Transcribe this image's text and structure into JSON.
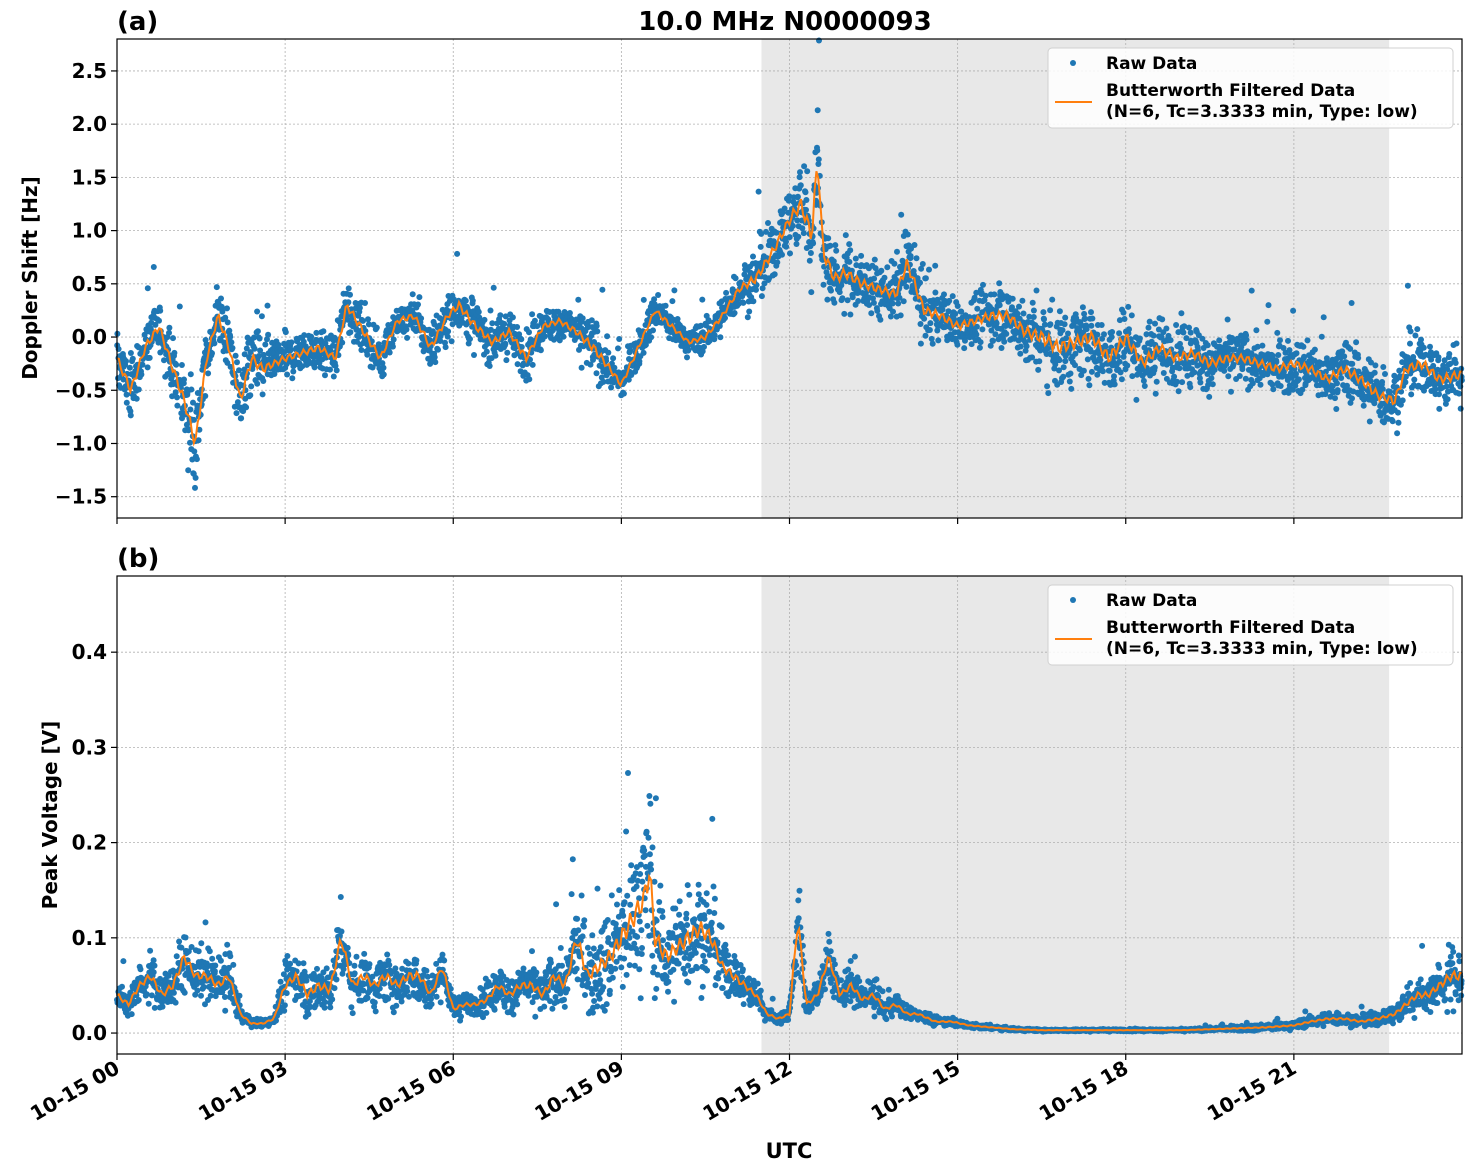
{
  "figure": {
    "title": "10.0 MHz N0000093",
    "xlabel": "UTC",
    "x_range_hours": [
      0,
      24
    ],
    "x_ticks": [
      {
        "h": 0,
        "label": "10-15 00"
      },
      {
        "h": 3,
        "label": "10-15 03"
      },
      {
        "h": 6,
        "label": "10-15 06"
      },
      {
        "h": 9,
        "label": "10-15 09"
      },
      {
        "h": 12,
        "label": "10-15 12"
      },
      {
        "h": 15,
        "label": "10-15 15"
      },
      {
        "h": 18,
        "label": "10-15 18"
      },
      {
        "h": 21,
        "label": "10-15 21"
      }
    ],
    "shaded_interval_hours": [
      11.5,
      22.7
    ],
    "colors": {
      "raw": "#1f77b4",
      "filtered": "#ff7f0e",
      "shade": "#e8e8e8",
      "grid": "#b0b0b0"
    }
  },
  "legend": {
    "raw_label": "Raw Data",
    "filtered_label_line1": "Butterworth Filtered Data",
    "filtered_label_line2": "(N=6, Tc=3.3333 min, Type: low)"
  },
  "chart_data": [
    {
      "panel": "(a)",
      "type": "scatter+line",
      "ylabel": "Doppler Shift [Hz]",
      "ylim": [
        -1.7,
        2.8
      ],
      "yticks": [
        -1.5,
        -1.0,
        -0.5,
        0.0,
        0.5,
        1.0,
        1.5,
        2.0,
        2.5
      ],
      "ytick_labels": [
        "−1.5",
        "−1.0",
        "−0.5",
        "0.0",
        "0.5",
        "1.0",
        "1.5",
        "2.0",
        "2.5"
      ],
      "filtered": {
        "x": [
          0,
          0.25,
          0.5,
          0.75,
          1.0,
          1.2,
          1.4,
          1.6,
          1.8,
          2.0,
          2.2,
          2.4,
          2.6,
          2.8,
          3.0,
          3.3,
          3.6,
          3.9,
          4.1,
          4.4,
          4.7,
          5.0,
          5.3,
          5.6,
          5.9,
          6.1,
          6.4,
          6.7,
          7.0,
          7.3,
          7.6,
          7.9,
          8.2,
          8.5,
          8.8,
          9.0,
          9.3,
          9.6,
          9.9,
          10.2,
          10.5,
          10.8,
          11.1,
          11.4,
          11.7,
          12.0,
          12.2,
          12.4,
          12.5,
          12.6,
          12.8,
          13.0,
          13.3,
          13.6,
          13.9,
          14.1,
          14.4,
          14.7,
          15.0,
          15.3,
          15.6,
          15.9,
          16.2,
          16.5,
          16.8,
          17.1,
          17.4,
          17.7,
          18.0,
          18.3,
          18.6,
          18.9,
          19.2,
          19.5,
          19.8,
          20.1,
          20.4,
          20.7,
          21.0,
          21.3,
          21.6,
          21.9,
          22.2,
          22.5,
          22.8,
          23.0,
          23.3,
          23.6,
          24.0
        ],
        "y": [
          -0.2,
          -0.5,
          -0.1,
          0.1,
          -0.3,
          -0.6,
          -1.0,
          -0.2,
          0.2,
          -0.1,
          -0.6,
          -0.2,
          -0.3,
          -0.25,
          -0.2,
          -0.15,
          -0.1,
          -0.2,
          0.3,
          0.05,
          -0.2,
          0.15,
          0.2,
          -0.1,
          0.2,
          0.3,
          0.1,
          -0.05,
          0.05,
          -0.2,
          0.1,
          0.15,
          0.05,
          -0.1,
          -0.3,
          -0.45,
          -0.1,
          0.25,
          0.1,
          -0.05,
          0.0,
          0.2,
          0.45,
          0.55,
          0.8,
          1.1,
          1.25,
          0.95,
          1.7,
          0.8,
          0.55,
          0.6,
          0.5,
          0.45,
          0.4,
          0.7,
          0.25,
          0.2,
          0.1,
          0.15,
          0.2,
          0.2,
          0.05,
          0.0,
          -0.1,
          -0.05,
          0.0,
          -0.2,
          0.0,
          -0.25,
          -0.1,
          -0.2,
          -0.15,
          -0.25,
          -0.2,
          -0.2,
          -0.25,
          -0.3,
          -0.25,
          -0.3,
          -0.4,
          -0.3,
          -0.4,
          -0.55,
          -0.6,
          -0.3,
          -0.25,
          -0.4,
          -0.35
        ],
        "spread": [
          0.3,
          0.35,
          0.3,
          0.3,
          0.35,
          0.4,
          0.5,
          0.3,
          0.3,
          0.35,
          0.4,
          0.4,
          0.35,
          0.25,
          0.25,
          0.25,
          0.25,
          0.25,
          0.3,
          0.3,
          0.25,
          0.2,
          0.25,
          0.3,
          0.25,
          0.3,
          0.3,
          0.25,
          0.25,
          0.3,
          0.2,
          0.2,
          0.25,
          0.35,
          0.25,
          0.2,
          0.2,
          0.2,
          0.2,
          0.15,
          0.2,
          0.2,
          0.25,
          0.35,
          0.35,
          0.4,
          0.5,
          0.6,
          0.7,
          0.5,
          0.4,
          0.4,
          0.35,
          0.3,
          0.35,
          0.4,
          0.35,
          0.3,
          0.3,
          0.3,
          0.35,
          0.35,
          0.4,
          0.5,
          0.5,
          0.45,
          0.45,
          0.45,
          0.45,
          0.4,
          0.4,
          0.35,
          0.35,
          0.35,
          0.3,
          0.3,
          0.3,
          0.3,
          0.3,
          0.3,
          0.3,
          0.35,
          0.35,
          0.35,
          0.35,
          0.35,
          0.35,
          0.35,
          0.35
        ]
      }
    },
    {
      "panel": "(b)",
      "type": "scatter+line",
      "ylabel": "Peak Voltage [V]",
      "ylim": [
        -0.022,
        0.48
      ],
      "yticks": [
        0.0,
        0.1,
        0.2,
        0.3,
        0.4
      ],
      "ytick_labels": [
        "0.0",
        "0.1",
        "0.2",
        "0.3",
        "0.4"
      ],
      "filtered": {
        "x": [
          0,
          0.2,
          0.4,
          0.6,
          0.8,
          1.0,
          1.2,
          1.4,
          1.6,
          1.8,
          2.0,
          2.2,
          2.4,
          2.6,
          2.8,
          3.0,
          3.2,
          3.4,
          3.6,
          3.8,
          4.0,
          4.2,
          4.4,
          4.6,
          4.8,
          5.0,
          5.2,
          5.4,
          5.6,
          5.8,
          6.0,
          6.2,
          6.4,
          6.6,
          6.8,
          7.0,
          7.2,
          7.4,
          7.6,
          7.8,
          8.0,
          8.2,
          8.4,
          8.6,
          8.8,
          9.0,
          9.2,
          9.4,
          9.5,
          9.6,
          9.8,
          10.0,
          10.2,
          10.4,
          10.6,
          10.8,
          11.0,
          11.2,
          11.4,
          11.6,
          11.8,
          12.0,
          12.15,
          12.3,
          12.5,
          12.7,
          12.9,
          13.1,
          13.3,
          13.5,
          13.7,
          13.9,
          14.1,
          14.3,
          14.6,
          14.9,
          15.2,
          15.6,
          16.0,
          16.5,
          17.0,
          17.5,
          18.0,
          18.5,
          19.0,
          19.5,
          20.0,
          20.5,
          21.0,
          21.3,
          21.6,
          21.9,
          22.2,
          22.5,
          22.8,
          23.0,
          23.2,
          23.4,
          23.6,
          23.8,
          24.0
        ],
        "y": [
          0.04,
          0.03,
          0.05,
          0.06,
          0.04,
          0.05,
          0.08,
          0.06,
          0.06,
          0.05,
          0.06,
          0.02,
          0.01,
          0.01,
          0.015,
          0.05,
          0.06,
          0.04,
          0.05,
          0.045,
          0.1,
          0.05,
          0.06,
          0.05,
          0.06,
          0.05,
          0.06,
          0.06,
          0.04,
          0.07,
          0.025,
          0.03,
          0.03,
          0.035,
          0.05,
          0.04,
          0.05,
          0.05,
          0.04,
          0.06,
          0.05,
          0.1,
          0.06,
          0.07,
          0.08,
          0.1,
          0.12,
          0.14,
          0.17,
          0.1,
          0.08,
          0.09,
          0.1,
          0.11,
          0.1,
          0.07,
          0.06,
          0.05,
          0.04,
          0.02,
          0.015,
          0.02,
          0.12,
          0.03,
          0.04,
          0.08,
          0.04,
          0.05,
          0.035,
          0.04,
          0.025,
          0.03,
          0.02,
          0.02,
          0.012,
          0.012,
          0.008,
          0.006,
          0.004,
          0.003,
          0.003,
          0.003,
          0.003,
          0.003,
          0.003,
          0.004,
          0.005,
          0.006,
          0.008,
          0.012,
          0.015,
          0.015,
          0.012,
          0.015,
          0.02,
          0.03,
          0.04,
          0.04,
          0.05,
          0.06,
          0.06
        ],
        "spread": [
          0.02,
          0.02,
          0.025,
          0.03,
          0.025,
          0.03,
          0.04,
          0.03,
          0.035,
          0.03,
          0.03,
          0.01,
          0.006,
          0.006,
          0.008,
          0.03,
          0.03,
          0.03,
          0.035,
          0.03,
          0.05,
          0.03,
          0.035,
          0.03,
          0.035,
          0.03,
          0.035,
          0.035,
          0.02,
          0.035,
          0.015,
          0.015,
          0.015,
          0.02,
          0.025,
          0.025,
          0.03,
          0.03,
          0.025,
          0.035,
          0.035,
          0.06,
          0.05,
          0.05,
          0.07,
          0.08,
          0.09,
          0.1,
          0.12,
          0.08,
          0.06,
          0.06,
          0.07,
          0.07,
          0.06,
          0.04,
          0.035,
          0.025,
          0.02,
          0.01,
          0.008,
          0.01,
          0.06,
          0.015,
          0.02,
          0.03,
          0.02,
          0.025,
          0.015,
          0.02,
          0.012,
          0.015,
          0.01,
          0.008,
          0.006,
          0.005,
          0.004,
          0.003,
          0.002,
          0.0015,
          0.0015,
          0.0015,
          0.0015,
          0.0015,
          0.0015,
          0.002,
          0.003,
          0.004,
          0.005,
          0.007,
          0.008,
          0.008,
          0.007,
          0.01,
          0.012,
          0.02,
          0.025,
          0.025,
          0.03,
          0.04,
          0.04
        ]
      }
    }
  ]
}
